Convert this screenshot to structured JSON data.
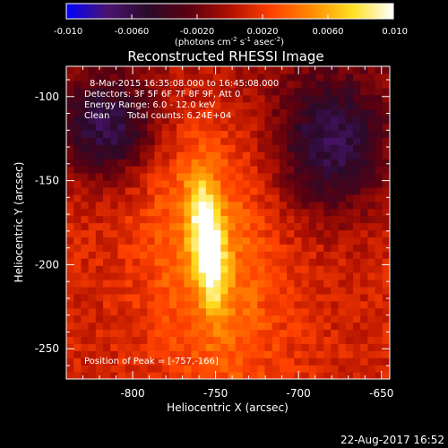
{
  "colorbar": {
    "tick_labels": [
      "-0.010",
      "-0.0060",
      "-0.0020",
      "0.0020",
      "0.0060",
      "0.010"
    ],
    "tick_values": [
      -0.01,
      -0.006,
      -0.002,
      0.002,
      0.006,
      0.01
    ],
    "range": [
      -0.01,
      0.01
    ],
    "units_text": "(photons cm",
    "units_exp1": "-2",
    "units_mid": " s",
    "units_exp2": "-1",
    "units_mid2": " asec",
    "units_exp3": "-2",
    "units_end": ")",
    "colormap": [
      "#0000ff",
      "#4b1470",
      "#2a0a2a",
      "#5a0010",
      "#b01000",
      "#ff4000",
      "#ff8a00",
      "#ffe020",
      "#ffffff"
    ]
  },
  "chart_data": {
    "type": "heatmap",
    "title": "Reconstructed RHESSI Image",
    "xlabel": "Heliocentric X (arcsec)",
    "ylabel": "Heliocentric Y (arcsec)",
    "xlim": [
      -840,
      -645
    ],
    "ylim": [
      -268,
      -82
    ],
    "x_ticks": [
      -800,
      -750,
      -700,
      -650
    ],
    "x_tick_labels": [
      "-800",
      "-750",
      "-700",
      "-650"
    ],
    "y_ticks": [
      -250,
      -200,
      -150,
      -100
    ],
    "y_tick_labels": [
      "-250",
      "-200",
      "-150",
      "-100"
    ],
    "peak_position": [
      -757,
      -166
    ],
    "annotations": {
      "line1": "8-Mar-2015 16:35:08.000 to 16:45:08.000",
      "line2": "Detectors: 3F 5F 6F 7F 8F 9F, Att 0",
      "line3": "Energy Range: 6.0 - 12.0 keV",
      "line4_a": "Clean",
      "line4_b": "Total counts: 6.24E+04",
      "peak_text": "Position of Peak = [-757,-166]"
    }
  },
  "footer": {
    "timestamp": "22-Aug-2017 16:52"
  }
}
